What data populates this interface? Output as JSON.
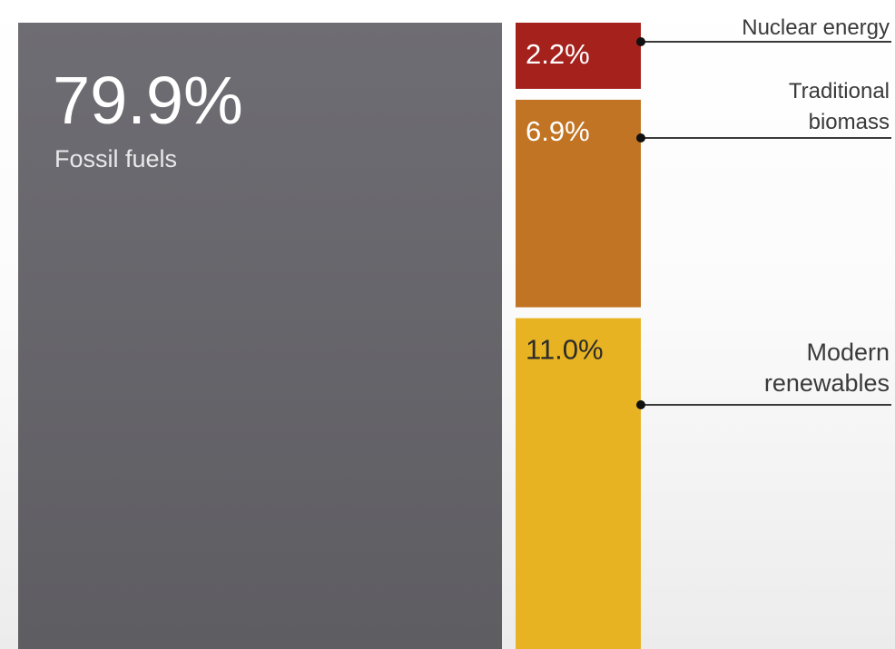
{
  "chart_data": {
    "type": "treemap",
    "title": "",
    "segments": [
      {
        "name": "Fossil fuels",
        "value": 79.9,
        "value_label": "79.9%",
        "color": "#6b6a70",
        "text_color": "#ffffff"
      },
      {
        "name": "Nuclear energy",
        "value": 2.2,
        "value_label": "2.2%",
        "color": "#a5211c",
        "text_color": "#ffffff"
      },
      {
        "name": "Traditional biomass",
        "name_lines": [
          "Traditional",
          "biomass"
        ],
        "value": 6.9,
        "value_label": "6.9%",
        "color": "#c17423",
        "text_color": "#ffffff"
      },
      {
        "name": "Modern renewables",
        "name_lines": [
          "Modern",
          "renewables"
        ],
        "value": 11.0,
        "value_label": "11.0%",
        "color": "#e8b322",
        "text_color": "#2b2b2b"
      }
    ]
  }
}
